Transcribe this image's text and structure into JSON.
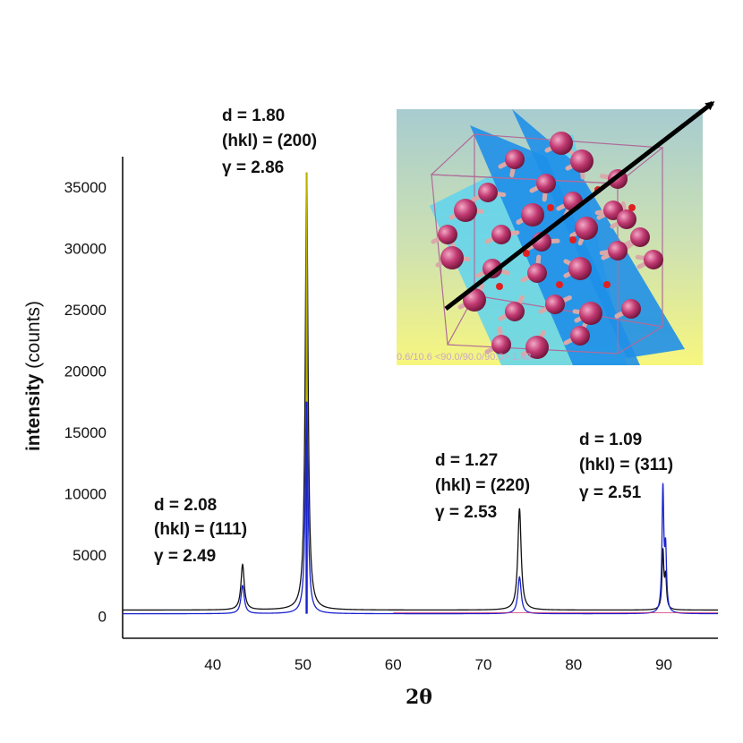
{
  "chart_data": {
    "type": "line",
    "xlabel": "2θ",
    "ylabel_bold": "intensity",
    "ylabel_rest": " (counts)",
    "xlim": [
      30,
      96
    ],
    "ylim": [
      -1800,
      37500
    ],
    "xticks": [
      40,
      50,
      60,
      70,
      80,
      90
    ],
    "yticks": [
      0,
      5000,
      10000,
      15000,
      20000,
      25000,
      30000,
      35000
    ],
    "baseline": {
      "black": 500,
      "blue": 200
    },
    "peaks": [
      {
        "x": 43.3,
        "black": 4200,
        "blue": 2500,
        "width": 0.22
      },
      {
        "x": 50.4,
        "black": 36200,
        "blue": 17500,
        "yellow": 36200,
        "width": 0.18
      },
      {
        "x": 74.0,
        "black": 8800,
        "blue": 3200,
        "width": 0.22
      },
      {
        "x": 89.9,
        "black": 5200,
        "blue": 10200,
        "width": 0.12
      },
      {
        "x": 90.2,
        "black": 3000,
        "blue": 5000,
        "width": 0.12
      }
    ],
    "series": [
      {
        "color": "#111111"
      },
      {
        "color": "#1a22cc"
      },
      {
        "color": "#b9b200"
      },
      {
        "color": "#cc2266"
      }
    ],
    "annotations": [
      {
        "d": "d = 2.08",
        "hkl": "(hkl) = (111)",
        "gamma": "γ = 2.49"
      },
      {
        "d": "d = 1.80",
        "hkl": "(hkl) = (200)",
        "gamma": "γ = 2.86"
      },
      {
        "d": "d = 1.27",
        "hkl": "(hkl) = (220)",
        "gamma": "γ = 2.53"
      },
      {
        "d": "d = 1.09",
        "hkl": "(hkl) = (311)",
        "gamma": "γ = 2.51"
      }
    ],
    "inset": {
      "caption": "0.6/10.6 <90.0/90.0/90.0> 1.43",
      "atom_color": "#c23a72",
      "bond_color": "#d9a9a9",
      "plane_color_1": "#1f8fe8",
      "plane_color_2": "#5fd3ee",
      "background_top": "#a7ccd0",
      "background_bottom": "#f7f67e"
    }
  }
}
